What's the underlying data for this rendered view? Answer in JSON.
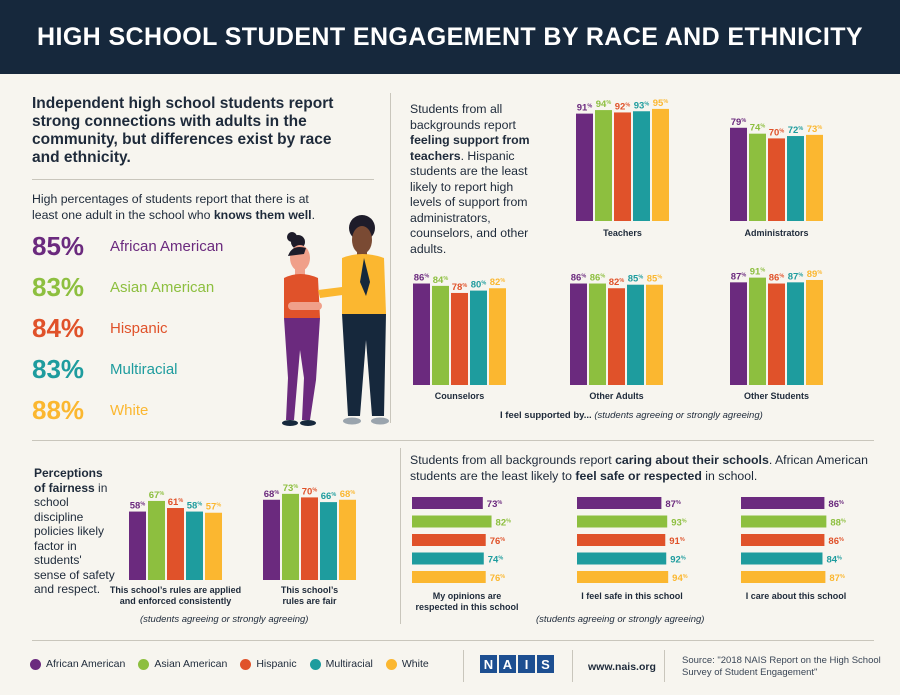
{
  "title": "HIGH SCHOOL STUDENT ENGAGEMENT BY RACE AND ETHNICITY",
  "colors": {
    "African American": "#6b2a7e",
    "Asian American": "#8dbf3f",
    "Hispanic": "#e0522a",
    "Multiracial": "#1e9c9e",
    "White": "#fbb730"
  },
  "intro": "Independent high school students report strong connections with adults in the community, but differences exist by race and ethnicity.",
  "knows_text_pre": "High percentages of students report that there is at least one adult in the school who ",
  "knows_text_bold": "knows them well",
  "knows_text_post": ".",
  "knows_stats": [
    {
      "pct": "85%",
      "label": "African American"
    },
    {
      "pct": "83%",
      "label": "Asian American"
    },
    {
      "pct": "84%",
      "label": "Hispanic"
    },
    {
      "pct": "83%",
      "label": "Multiracial"
    },
    {
      "pct": "88%",
      "label": "White"
    }
  ],
  "support_text_pre": "Students from all backgrounds report ",
  "support_text_bold": "feeling support from teachers",
  "support_text_post": ". Hispanic students are the least likely to report high levels of support from administrators, counselors, and other adults.",
  "support_caption_main": "I feel supported by...",
  "support_caption_note": "(students agreeing or strongly agreeing)",
  "fair_bold": "Perceptions of fairness",
  "fair_text": " in school discipline policies likely factor in students' sense of safety and respect.",
  "fair_note": "(students agreeing or strongly agreeing)",
  "caring_text_pre": "Students from all backgrounds report ",
  "caring_text_bold1": "caring about their schools",
  "caring_text_mid": ". African American students are the least likely to ",
  "caring_text_bold2": "feel safe or respected",
  "caring_text_post": " in school.",
  "caring_note": "(students agreeing or strongly agreeing)",
  "legend": [
    "African American",
    "Asian American",
    "Hispanic",
    "Multiracial",
    "White"
  ],
  "logo_letters": [
    "N",
    "A",
    "I",
    "S"
  ],
  "website": "www.nais.org",
  "source": "Source: \"2018 NAIS Report on the High School Survey of Student Engagement\"",
  "chart_data": [
    {
      "type": "bar",
      "title": "Teachers",
      "series_names": [
        "African American",
        "Asian American",
        "Hispanic",
        "Multiracial",
        "White"
      ],
      "values": [
        91,
        94,
        92,
        93,
        95
      ]
    },
    {
      "type": "bar",
      "title": "Administrators",
      "series_names": [
        "African American",
        "Asian American",
        "Hispanic",
        "Multiracial",
        "White"
      ],
      "values": [
        79,
        74,
        70,
        72,
        73
      ]
    },
    {
      "type": "bar",
      "title": "Counselors",
      "series_names": [
        "African American",
        "Asian American",
        "Hispanic",
        "Multiracial",
        "White"
      ],
      "values": [
        86,
        84,
        78,
        80,
        82
      ]
    },
    {
      "type": "bar",
      "title": "Other Adults",
      "series_names": [
        "African American",
        "Asian American",
        "Hispanic",
        "Multiracial",
        "White"
      ],
      "values": [
        86,
        86,
        82,
        85,
        85
      ]
    },
    {
      "type": "bar",
      "title": "Other Students",
      "series_names": [
        "African American",
        "Asian American",
        "Hispanic",
        "Multiracial",
        "White"
      ],
      "values": [
        87,
        91,
        86,
        87,
        89
      ]
    },
    {
      "type": "bar",
      "title": "This school's rules are applied and enforced consistently",
      "series_names": [
        "African American",
        "Asian American",
        "Hispanic",
        "Multiracial",
        "White"
      ],
      "values": [
        58,
        67,
        61,
        58,
        57
      ]
    },
    {
      "type": "bar",
      "title": "This school's rules are fair",
      "series_names": [
        "African American",
        "Asian American",
        "Hispanic",
        "Multiracial",
        "White"
      ],
      "values": [
        68,
        73,
        70,
        66,
        68
      ]
    },
    {
      "type": "bar",
      "orientation": "horizontal",
      "title": "My opinions are respected in this school",
      "series_names": [
        "African American",
        "Asian American",
        "Hispanic",
        "Multiracial",
        "White"
      ],
      "values": [
        73,
        82,
        76,
        74,
        76
      ]
    },
    {
      "type": "bar",
      "orientation": "horizontal",
      "title": "I feel safe in this school",
      "series_names": [
        "African American",
        "Asian American",
        "Hispanic",
        "Multiracial",
        "White"
      ],
      "values": [
        87,
        93,
        91,
        92,
        94
      ]
    },
    {
      "type": "bar",
      "orientation": "horizontal",
      "title": "I care about this school",
      "series_names": [
        "African American",
        "Asian American",
        "Hispanic",
        "Multiracial",
        "White"
      ],
      "values": [
        86,
        88,
        86,
        84,
        87
      ]
    }
  ]
}
